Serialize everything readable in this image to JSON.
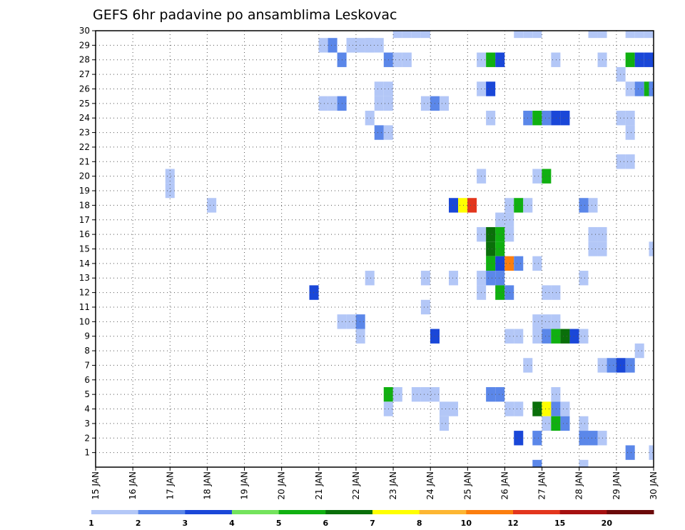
{
  "chart_data": {
    "type": "heatmap",
    "title": "GEFS 6hr padavine po ansamblima Leskovac",
    "xlabel": "",
    "ylabel": "",
    "x_ticks": [
      "15 JAN",
      "16 JAN",
      "17 JAN",
      "18 JAN",
      "19 JAN",
      "20 JAN",
      "21 JAN",
      "22 JAN",
      "23 JAN",
      "24 JAN",
      "25 JAN",
      "26 JAN",
      "27 JAN",
      "28 JAN",
      "29 JAN",
      "30 JAN"
    ],
    "x_range_days": [
      15,
      30
    ],
    "y_ticks": [
      1,
      2,
      3,
      4,
      5,
      6,
      7,
      8,
      9,
      10,
      11,
      12,
      13,
      14,
      15,
      16,
      17,
      18,
      19,
      20,
      21,
      22,
      23,
      24,
      25,
      26,
      27,
      28,
      29,
      30
    ],
    "y_range": [
      0,
      30
    ],
    "grid": true,
    "legend": {
      "position": "bottom",
      "labels": [
        "1",
        "2",
        "3",
        "4",
        "5",
        "6",
        "7",
        "8",
        "10",
        "12",
        "15",
        "20"
      ],
      "colors": [
        "#b3c7f7",
        "#5b87e9",
        "#1a47d8",
        "#74e35c",
        "#10b011",
        "#0a6f0a",
        "#ffff00",
        "#fdb632",
        "#fc7e0e",
        "#e3361d",
        "#a61010",
        "#6b0a0a"
      ]
    },
    "cells_note": "each cell: [day_offset_from_15JAN, member, precip_mm]",
    "cells": [
      [
        6.87,
        29,
        1
      ],
      [
        7.12,
        29,
        1
      ],
      [
        7.37,
        29,
        1
      ],
      [
        7.62,
        29,
        1
      ],
      [
        8.12,
        30,
        1
      ],
      [
        8.37,
        30,
        1
      ],
      [
        8.62,
        30,
        1
      ],
      [
        8.87,
        30,
        1
      ],
      [
        11.37,
        30,
        1
      ],
      [
        11.62,
        30,
        1
      ],
      [
        11.87,
        30,
        1
      ],
      [
        13.37,
        30,
        1
      ],
      [
        13.62,
        30,
        1
      ],
      [
        14.37,
        30,
        1
      ],
      [
        14.62,
        30,
        1
      ],
      [
        14.87,
        30,
        1
      ],
      [
        6.12,
        29,
        1
      ],
      [
        6.37,
        29,
        2
      ],
      [
        6.87,
        29,
        1
      ],
      [
        7.37,
        29,
        1
      ],
      [
        6.62,
        28,
        2
      ],
      [
        7.87,
        28,
        2
      ],
      [
        8.12,
        28,
        1
      ],
      [
        8.37,
        28,
        1
      ],
      [
        10.37,
        28,
        1
      ],
      [
        10.62,
        28,
        5
      ],
      [
        10.87,
        28,
        3
      ],
      [
        12.37,
        28,
        1
      ],
      [
        13.62,
        28,
        1
      ],
      [
        14.37,
        28,
        5
      ],
      [
        14.62,
        28,
        3
      ],
      [
        14.87,
        28,
        3
      ],
      [
        14.12,
        27,
        1
      ],
      [
        10.37,
        26,
        1
      ],
      [
        10.62,
        26,
        3
      ],
      [
        7.62,
        26,
        1
      ],
      [
        7.87,
        26,
        1
      ],
      [
        14.37,
        26,
        1
      ],
      [
        14.62,
        26,
        2
      ],
      [
        14.87,
        26,
        5
      ],
      [
        15.0,
        26,
        2
      ],
      [
        6.12,
        25,
        1
      ],
      [
        6.37,
        25,
        1
      ],
      [
        6.62,
        25,
        2
      ],
      [
        7.62,
        25,
        1
      ],
      [
        7.87,
        25,
        1
      ],
      [
        8.87,
        25,
        1
      ],
      [
        9.12,
        25,
        2
      ],
      [
        9.37,
        25,
        1
      ],
      [
        7.37,
        24,
        1
      ],
      [
        10.62,
        24,
        1
      ],
      [
        11.62,
        24,
        2
      ],
      [
        11.87,
        24,
        5
      ],
      [
        12.12,
        24,
        2
      ],
      [
        12.37,
        24,
        3
      ],
      [
        12.62,
        24,
        3
      ],
      [
        14.12,
        24,
        1
      ],
      [
        14.37,
        24,
        1
      ],
      [
        7.62,
        23,
        2
      ],
      [
        7.87,
        23,
        1
      ],
      [
        14.37,
        23,
        1
      ],
      [
        14.12,
        21,
        1
      ],
      [
        14.37,
        21,
        1
      ],
      [
        2.0,
        20,
        1
      ],
      [
        10.37,
        20,
        1
      ],
      [
        11.87,
        20,
        1
      ],
      [
        12.12,
        20,
        5
      ],
      [
        2.0,
        19,
        1
      ],
      [
        3.12,
        18,
        1
      ],
      [
        9.62,
        18,
        3
      ],
      [
        9.87,
        18,
        7
      ],
      [
        10.12,
        18,
        12
      ],
      [
        11.12,
        18,
        1
      ],
      [
        11.37,
        18,
        5
      ],
      [
        11.62,
        18,
        1
      ],
      [
        13.12,
        18,
        2
      ],
      [
        13.37,
        18,
        1
      ],
      [
        10.87,
        17,
        1
      ],
      [
        11.12,
        17,
        1
      ],
      [
        10.87,
        16,
        1
      ],
      [
        11.12,
        16,
        1
      ],
      [
        10.37,
        16,
        1
      ],
      [
        10.62,
        16,
        6
      ],
      [
        10.87,
        16,
        5
      ],
      [
        13.37,
        16,
        1
      ],
      [
        13.62,
        16,
        1
      ],
      [
        10.62,
        15,
        6
      ],
      [
        10.87,
        15,
        5
      ],
      [
        13.37,
        15,
        1
      ],
      [
        13.62,
        15,
        1
      ],
      [
        15.0,
        15,
        1
      ],
      [
        10.62,
        14,
        5
      ],
      [
        10.87,
        14,
        3
      ],
      [
        11.12,
        14,
        10
      ],
      [
        11.37,
        14,
        2
      ],
      [
        11.87,
        14,
        1
      ],
      [
        7.37,
        13,
        1
      ],
      [
        8.87,
        13,
        1
      ],
      [
        9.62,
        13,
        1
      ],
      [
        10.37,
        13,
        1
      ],
      [
        10.62,
        13,
        2
      ],
      [
        10.87,
        13,
        2
      ],
      [
        13.12,
        13,
        1
      ],
      [
        5.87,
        12,
        3
      ],
      [
        10.37,
        12,
        1
      ],
      [
        10.87,
        12,
        5
      ],
      [
        11.12,
        12,
        2
      ],
      [
        12.12,
        12,
        1
      ],
      [
        12.37,
        12,
        1
      ],
      [
        8.87,
        11,
        1
      ],
      [
        6.62,
        10,
        1
      ],
      [
        6.87,
        10,
        1
      ],
      [
        7.12,
        10,
        2
      ],
      [
        11.87,
        10,
        1
      ],
      [
        12.12,
        10,
        1
      ],
      [
        12.37,
        10,
        1
      ],
      [
        7.12,
        9,
        1
      ],
      [
        9.12,
        9,
        3
      ],
      [
        11.12,
        9,
        1
      ],
      [
        11.37,
        9,
        1
      ],
      [
        11.87,
        9,
        1
      ],
      [
        12.12,
        9,
        2
      ],
      [
        12.37,
        9,
        5
      ],
      [
        12.62,
        9,
        6
      ],
      [
        12.87,
        9,
        3
      ],
      [
        13.12,
        9,
        1
      ],
      [
        14.62,
        8,
        1
      ],
      [
        11.62,
        7,
        1
      ],
      [
        13.62,
        7,
        1
      ],
      [
        13.87,
        7,
        2
      ],
      [
        14.12,
        7,
        3
      ],
      [
        14.37,
        7,
        2
      ],
      [
        7.87,
        5,
        5
      ],
      [
        8.12,
        5,
        1
      ],
      [
        8.62,
        5,
        1
      ],
      [
        8.87,
        5,
        1
      ],
      [
        9.12,
        5,
        1
      ],
      [
        10.62,
        5,
        2
      ],
      [
        10.87,
        5,
        2
      ],
      [
        12.37,
        5,
        1
      ],
      [
        7.87,
        4,
        1
      ],
      [
        9.37,
        4,
        1
      ],
      [
        9.62,
        4,
        1
      ],
      [
        11.12,
        4,
        1
      ],
      [
        11.37,
        4,
        1
      ],
      [
        11.87,
        4,
        6
      ],
      [
        12.12,
        4,
        7
      ],
      [
        12.37,
        4,
        2
      ],
      [
        12.62,
        4,
        1
      ],
      [
        9.37,
        3,
        1
      ],
      [
        12.12,
        3,
        1
      ],
      [
        12.37,
        3,
        5
      ],
      [
        12.62,
        3,
        2
      ],
      [
        13.12,
        3,
        1
      ],
      [
        11.37,
        2,
        3
      ],
      [
        11.87,
        2,
        2
      ],
      [
        13.12,
        2,
        2
      ],
      [
        13.37,
        2,
        2
      ],
      [
        13.62,
        2,
        1
      ],
      [
        14.37,
        1,
        2
      ],
      [
        15.0,
        1,
        1
      ],
      [
        11.87,
        0,
        2
      ],
      [
        13.12,
        0,
        1
      ]
    ]
  }
}
